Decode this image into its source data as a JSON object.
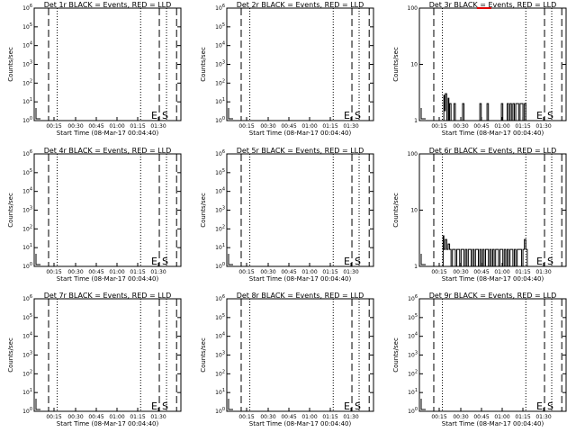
{
  "chart_data": [
    {
      "id": "det1r",
      "type": "line",
      "title": "Det 1r BLACK = Events, RED = LLD",
      "xlabel": "Start Time (08-Mar-17 00:04:40)",
      "ylabel": "Counts/sec",
      "y_scale": "log",
      "ylim": [
        1,
        1000000
      ],
      "y_ticks": [
        "10^0",
        "10^1",
        "10^2",
        "10^3",
        "10^4",
        "10^5",
        "10^6"
      ],
      "x_tick_labels": [
        "00:15",
        "00:30",
        "00:45",
        "01:00",
        "01:15",
        "01:30"
      ],
      "x_range_minutes": [
        0,
        102
      ],
      "dashed_lines_minutes": [
        10,
        87,
        99
      ],
      "dotted_lines_minutes": [
        16,
        74,
        92
      ],
      "se_labels": [
        "E",
        "S"
      ],
      "series": []
    },
    {
      "id": "det2r",
      "type": "line",
      "title": "Det 2r BLACK = Events, RED = LLD",
      "xlabel": "Start Time (08-Mar-17 00:04:40)",
      "ylabel": "Counts/sec",
      "y_scale": "log",
      "ylim": [
        1,
        1000000
      ],
      "y_ticks": [
        "10^0",
        "10^1",
        "10^2",
        "10^3",
        "10^4",
        "10^5",
        "10^6"
      ],
      "x_tick_labels": [
        "00:15",
        "00:30",
        "00:45",
        "01:00",
        "01:15",
        "01:30"
      ],
      "x_range_minutes": [
        0,
        102
      ],
      "dashed_lines_minutes": [
        10,
        87,
        99
      ],
      "dotted_lines_minutes": [
        16,
        74,
        92
      ],
      "se_labels": [
        "E",
        "S"
      ],
      "series": []
    },
    {
      "id": "det3r",
      "type": "line",
      "title": "Det 3r BLACK = Events, RED = LLD",
      "xlabel": "Start Time (08-Mar-17 00:04:40)",
      "ylabel": "Counts/sec",
      "y_scale": "log",
      "ylim": [
        1,
        100
      ],
      "y_ticks": [
        "1",
        "10",
        "100"
      ],
      "x_tick_labels": [
        "00:15",
        "00:30",
        "00:45",
        "01:00",
        "01:15",
        "01:30"
      ],
      "x_range_minutes": [
        0,
        102
      ],
      "dashed_lines_minutes": [
        10,
        87,
        99
      ],
      "dotted_lines_minutes": [
        16,
        74,
        92
      ],
      "se_labels": [
        "E",
        "S"
      ],
      "series": [
        {
          "color": "black",
          "x": [
            16,
            17,
            17.5,
            18,
            19,
            20,
            20.5,
            21,
            22,
            23,
            24,
            25,
            26,
            27,
            28,
            29,
            30,
            31,
            32,
            33,
            34,
            35,
            36,
            37,
            38,
            39,
            40,
            41,
            42,
            43,
            44,
            45,
            46,
            47,
            48,
            49,
            50,
            51,
            52,
            53,
            54,
            55,
            56,
            57,
            58,
            59,
            60,
            61,
            62,
            63,
            64,
            65,
            66,
            67,
            68,
            69,
            70,
            71,
            72,
            73,
            74
          ],
          "y": [
            1,
            2.8,
            1.5,
            3,
            1,
            2.5,
            1,
            2,
            1,
            1,
            2,
            1,
            1,
            1,
            1,
            1,
            2,
            1,
            1,
            1,
            1,
            1,
            1,
            1,
            1,
            1,
            1,
            1,
            2,
            1,
            1,
            1,
            1,
            2,
            1,
            1,
            1,
            1,
            1,
            1,
            1,
            1,
            1,
            2,
            1,
            1,
            1,
            2,
            1,
            2,
            1,
            2,
            1,
            2,
            2,
            1,
            2,
            2,
            1,
            2,
            1
          ]
        },
        {
          "color": "red",
          "x": [
            40,
            43,
            46,
            50
          ],
          "y": [
            100,
            100,
            100,
            100
          ]
        }
      ]
    },
    {
      "id": "det4r",
      "type": "line",
      "title": "Det 4r BLACK = Events, RED = LLD",
      "xlabel": "Start Time (08-Mar-17 00:04:40)",
      "ylabel": "Counts/sec",
      "y_scale": "log",
      "ylim": [
        1,
        1000000
      ],
      "y_ticks": [
        "10^0",
        "10^1",
        "10^2",
        "10^3",
        "10^4",
        "10^5",
        "10^6"
      ],
      "x_tick_labels": [
        "00:15",
        "00:30",
        "00:45",
        "01:00",
        "01:15",
        "01:30"
      ],
      "x_range_minutes": [
        0,
        102
      ],
      "dashed_lines_minutes": [
        10,
        87,
        99
      ],
      "dotted_lines_minutes": [
        16,
        74,
        92
      ],
      "se_labels": [
        "E",
        "S"
      ],
      "series": []
    },
    {
      "id": "det5r",
      "type": "line",
      "title": "Det 5r BLACK = Events, RED = LLD",
      "xlabel": "Start Time (08-Mar-17 00:04:40)",
      "ylabel": "Counts/sec",
      "y_scale": "log",
      "ylim": [
        1,
        1000000
      ],
      "y_ticks": [
        "10^0",
        "10^1",
        "10^2",
        "10^3",
        "10^4",
        "10^5",
        "10^6"
      ],
      "x_tick_labels": [
        "00:15",
        "00:30",
        "00:45",
        "01:00",
        "01:15",
        "01:30"
      ],
      "x_range_minutes": [
        0,
        102
      ],
      "dashed_lines_minutes": [
        10,
        87,
        99
      ],
      "dotted_lines_minutes": [
        16,
        74,
        92
      ],
      "se_labels": [
        "E",
        "S"
      ],
      "series": []
    },
    {
      "id": "det6r",
      "type": "line",
      "title": "Det 6r BLACK = Events, RED = LLD",
      "xlabel": "Start Time (08-Mar-17 00:04:40)",
      "ylabel": "Counts/sec",
      "y_scale": "log",
      "ylim": [
        1,
        100
      ],
      "y_ticks": [
        "1",
        "10",
        "100"
      ],
      "x_tick_labels": [
        "00:15",
        "00:30",
        "00:45",
        "01:00",
        "01:15",
        "01:30"
      ],
      "x_range_minutes": [
        0,
        102
      ],
      "dashed_lines_minutes": [
        10,
        87,
        99
      ],
      "dotted_lines_minutes": [
        16,
        74,
        92
      ],
      "se_labels": [
        "E",
        "S"
      ],
      "series": [
        {
          "color": "black",
          "x": [
            16,
            16.5,
            17,
            18,
            19,
            20,
            21,
            22,
            23,
            24,
            25,
            26,
            27,
            28,
            29,
            30,
            31,
            32,
            33,
            34,
            35,
            36,
            37,
            38,
            39,
            40,
            41,
            42,
            43,
            44,
            45,
            46,
            47,
            48,
            49,
            50,
            51,
            52,
            53,
            54,
            55,
            56,
            57,
            58,
            59,
            60,
            61,
            62,
            63,
            64,
            65,
            66,
            67,
            68,
            69,
            70,
            71,
            72,
            73,
            74,
            75
          ],
          "y": [
            1,
            3.5,
            2,
            3,
            2,
            2.5,
            2,
            1,
            2,
            2,
            1,
            2,
            2,
            1,
            2,
            2,
            1,
            2,
            1,
            2,
            2,
            1,
            2,
            1,
            2,
            2,
            1,
            2,
            1,
            2,
            1,
            2,
            2,
            1,
            2,
            1,
            2,
            1,
            2,
            2,
            1,
            2,
            2,
            1,
            2,
            1,
            2,
            1,
            2,
            2,
            1,
            2,
            1,
            2,
            2,
            2,
            1,
            2,
            3,
            2,
            1
          ]
        }
      ]
    },
    {
      "id": "det7r",
      "type": "line",
      "title": "Det 7r BLACK = Events, RED = LLD",
      "xlabel": "Start Time (08-Mar-17 00:04:40)",
      "ylabel": "Counts/sec",
      "y_scale": "log",
      "ylim": [
        1,
        1000000
      ],
      "y_ticks": [
        "10^0",
        "10^1",
        "10^2",
        "10^3",
        "10^4",
        "10^5",
        "10^6"
      ],
      "x_tick_labels": [
        "00:15",
        "00:30",
        "00:45",
        "01:00",
        "01:15",
        "01:30"
      ],
      "x_range_minutes": [
        0,
        102
      ],
      "dashed_lines_minutes": [
        10,
        87,
        99
      ],
      "dotted_lines_minutes": [
        16,
        74,
        92
      ],
      "se_labels": [
        "E",
        "S"
      ],
      "series": []
    },
    {
      "id": "det8r",
      "type": "line",
      "title": "Det 8r BLACK = Events, RED = LLD",
      "xlabel": "Start Time (08-Mar-17 00:04:40)",
      "ylabel": "Counts/sec",
      "y_scale": "log",
      "ylim": [
        1,
        1000000
      ],
      "y_ticks": [
        "10^0",
        "10^1",
        "10^2",
        "10^3",
        "10^4",
        "10^5",
        "10^6"
      ],
      "x_tick_labels": [
        "00:15",
        "00:30",
        "00:45",
        "01:00",
        "01:15",
        "01:30"
      ],
      "x_range_minutes": [
        0,
        102
      ],
      "dashed_lines_minutes": [
        10,
        87,
        99
      ],
      "dotted_lines_minutes": [
        16,
        74,
        92
      ],
      "se_labels": [
        "E",
        "S"
      ],
      "series": []
    },
    {
      "id": "det9r",
      "type": "line",
      "title": "Det 9r BLACK = Events, RED = LLD",
      "xlabel": "Start Time (08-Mar-17 00:04:40)",
      "ylabel": "Counts/sec",
      "y_scale": "log",
      "ylim": [
        1,
        1000000
      ],
      "y_ticks": [
        "10^0",
        "10^1",
        "10^2",
        "10^3",
        "10^4",
        "10^5",
        "10^6"
      ],
      "x_tick_labels": [
        "00:15",
        "00:30",
        "00:45",
        "01:00",
        "01:15",
        "01:30"
      ],
      "x_range_minutes": [
        0,
        102
      ],
      "dashed_lines_minutes": [
        10,
        87,
        99
      ],
      "dotted_lines_minutes": [
        16,
        74,
        92
      ],
      "se_labels": [
        "E",
        "S"
      ],
      "series": []
    }
  ]
}
